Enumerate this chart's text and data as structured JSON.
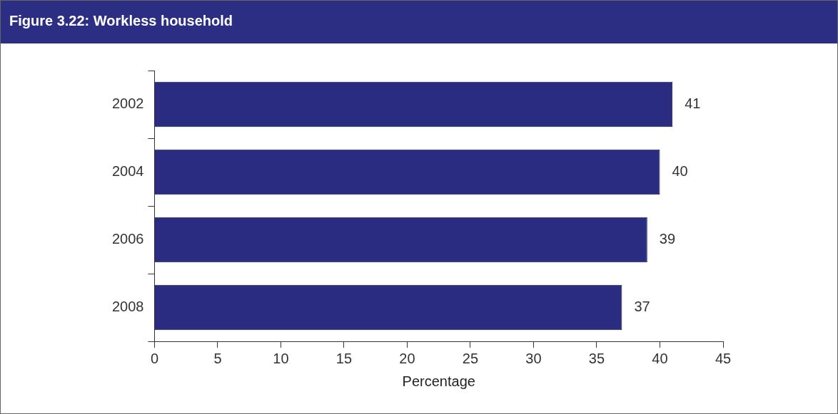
{
  "chart_data": {
    "type": "bar",
    "title": "Figure 3.22:  Workless household",
    "orientation": "horizontal",
    "categories": [
      "2002",
      "2004",
      "2006",
      "2008"
    ],
    "values": [
      41,
      40,
      39,
      37
    ],
    "color": "#2a2c82",
    "xlim": [
      0,
      45
    ],
    "xticks": [
      0,
      5,
      10,
      15,
      20,
      25,
      30,
      35,
      40,
      45
    ],
    "xlabel": "Percentage",
    "data_labels": true
  }
}
